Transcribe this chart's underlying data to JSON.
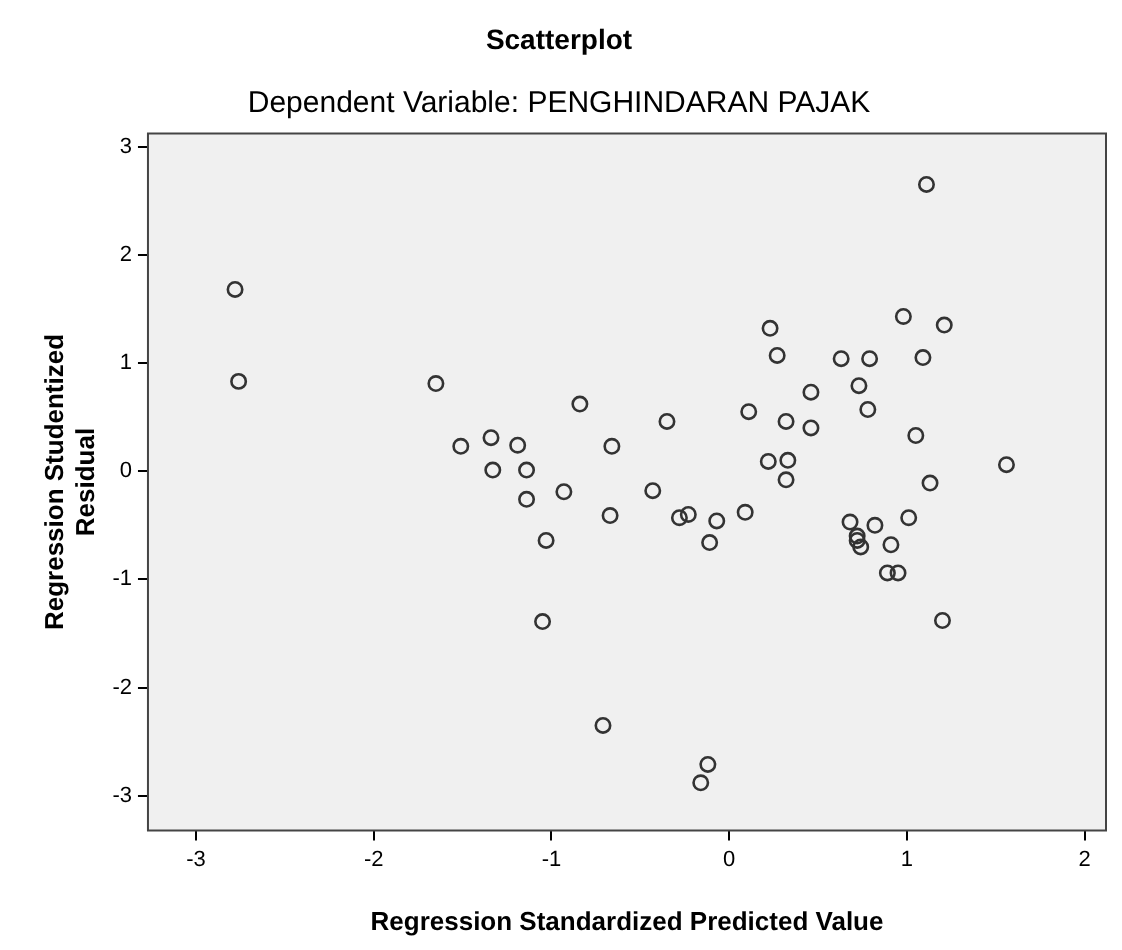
{
  "chart_data": {
    "type": "scatter",
    "title": "Scatterplot",
    "subtitle": "Dependent Variable: PENGHINDARAN PAJAK",
    "xlabel": "Regression Standardized Predicted Value",
    "ylabel": "Regression Studentized Residual",
    "xlim": [
      -3.27,
      2.12
    ],
    "ylim": [
      -3.32,
      3.12
    ],
    "xticks": [
      -3,
      -2,
      -1,
      0,
      1,
      2
    ],
    "yticks": [
      -3,
      -2,
      -1,
      0,
      1,
      2,
      3
    ],
    "legend": false,
    "marker": "circle",
    "series": [
      {
        "color": "#333333",
        "x": [
          -2.78,
          -2.76,
          -1.65,
          -1.51,
          -1.34,
          -1.33,
          -1.19,
          -1.14,
          -1.14,
          -0.93,
          -1.03,
          -1.05,
          -0.84,
          -0.66,
          -0.67,
          -0.35,
          -0.43,
          -0.28,
          -0.23,
          -0.07,
          -0.11,
          0.09,
          0.11,
          0.22,
          0.23,
          0.27,
          0.32,
          0.33,
          0.32,
          0.46,
          0.46,
          0.63,
          0.79,
          0.73,
          0.78,
          0.68,
          0.72,
          0.74,
          0.72,
          0.82,
          0.91,
          0.89,
          0.95,
          1.01,
          0.98,
          1.09,
          1.21,
          1.05,
          1.13,
          1.11,
          1.2,
          1.56,
          -0.71,
          -0.12,
          -0.16
        ],
        "values": [
          1.68,
          0.83,
          0.81,
          0.23,
          0.31,
          0.01,
          0.24,
          0.01,
          -0.26,
          -0.19,
          -0.64,
          -1.39,
          0.62,
          0.23,
          -0.41,
          0.46,
          -0.18,
          -0.43,
          -0.4,
          -0.46,
          -0.66,
          -0.38,
          0.55,
          0.09,
          1.32,
          1.07,
          0.46,
          0.1,
          -0.08,
          0.73,
          0.4,
          1.04,
          1.04,
          0.79,
          0.57,
          -0.47,
          -0.6,
          -0.7,
          -0.64,
          -0.5,
          -0.68,
          -0.94,
          -0.94,
          -0.43,
          1.43,
          1.05,
          1.35,
          0.33,
          -0.11,
          2.65,
          -1.38,
          0.06,
          -2.35,
          -2.71,
          -2.88
        ]
      }
    ]
  }
}
